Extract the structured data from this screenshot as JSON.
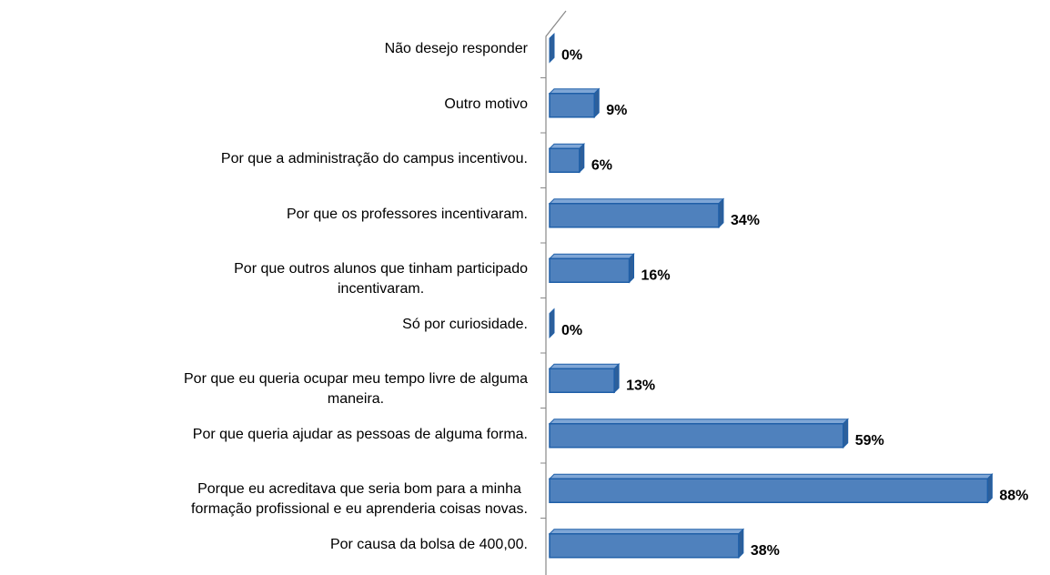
{
  "chart_data": {
    "type": "bar",
    "orientation": "horizontal",
    "categories": [
      "Não desejo responder",
      "Outro motivo",
      "Por que a administração do campus incentivou.",
      "Por que os professores incentivaram.",
      "Por que outros alunos que tinham participado\nincentivaram.",
      "Só por curiosidade.",
      "Por que eu queria ocupar meu tempo livre de alguma\nmaneira.",
      "Por que queria ajudar as pessoas de alguma forma.",
      "Porque eu acreditava que seria bom para a minha\nformação profissional e eu aprenderia coisas novas.",
      "Por causa da bolsa de 400,00."
    ],
    "values": [
      0,
      9,
      6,
      34,
      16,
      0,
      13,
      59,
      88,
      38
    ],
    "value_labels": [
      "0%",
      "9%",
      "6%",
      "34%",
      "16%",
      "0%",
      "13%",
      "59%",
      "88%",
      "38%"
    ],
    "color": "#4f81bd",
    "xlim": [
      0,
      100
    ]
  }
}
